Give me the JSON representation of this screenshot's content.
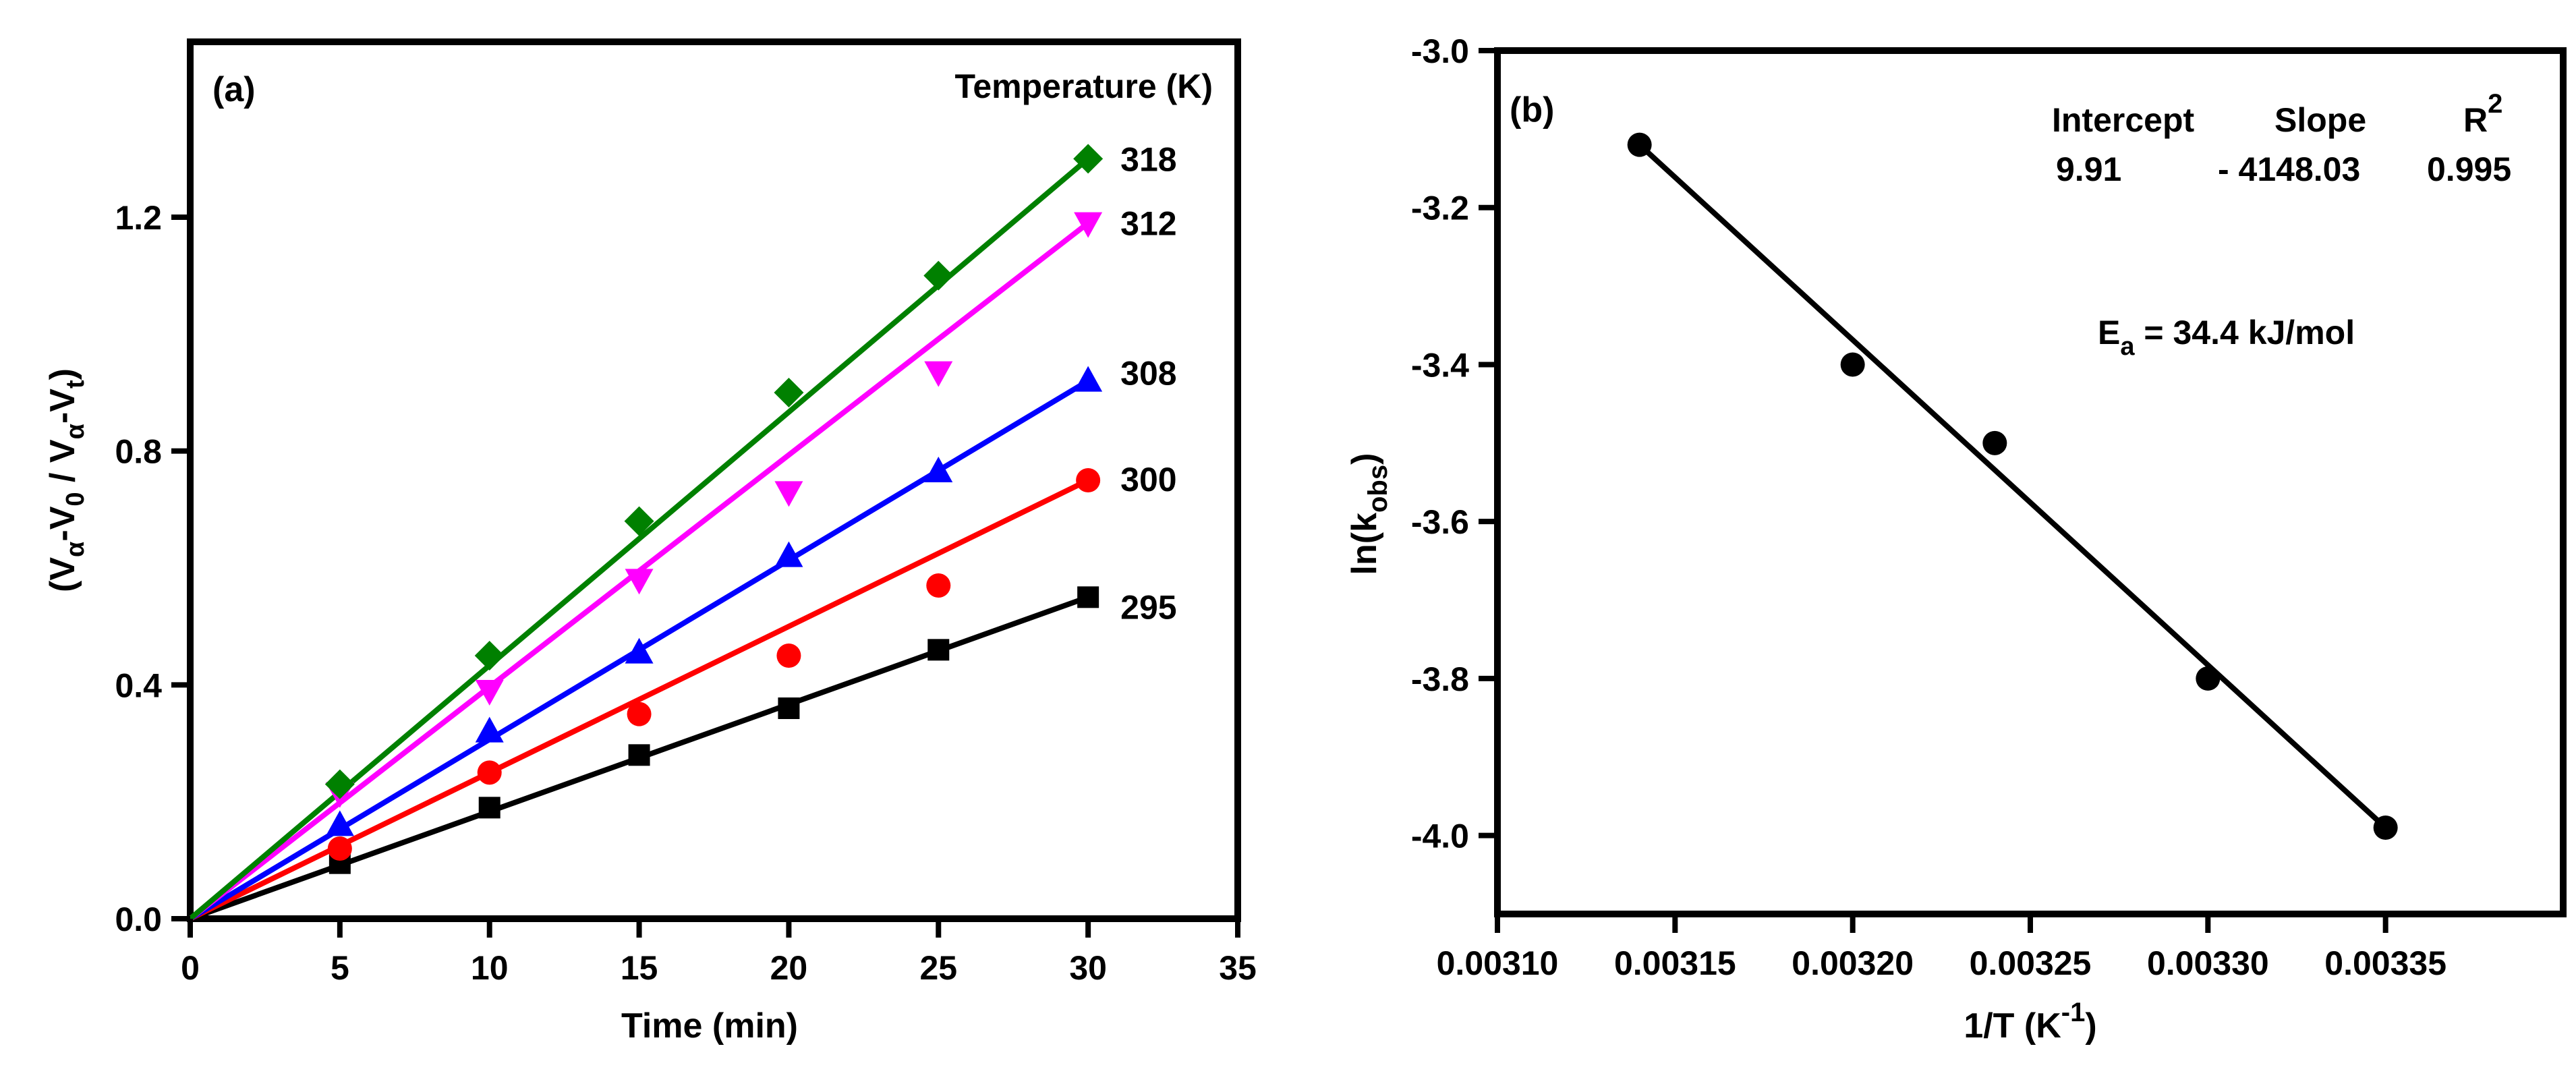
{
  "chart_data": [
    {
      "type": "scatter",
      "panel_label": "(a)",
      "title": "",
      "xlabel": "Time (min)",
      "ylabel": {
        "main": "(V",
        "sub1": "α",
        "mid1": "-V",
        "sub2": "0",
        "mid2": " / V",
        "sub3": "α",
        "mid3": "-V",
        "sub4": "t",
        "end": ")"
      },
      "xlim": [
        0,
        35
      ],
      "ylim": [
        0,
        1.5
      ],
      "xticks": [
        0,
        5,
        10,
        15,
        20,
        25,
        30,
        35
      ],
      "xtick_labels": [
        "0",
        "5",
        "10",
        "15",
        "20",
        "25",
        "30",
        "35"
      ],
      "yticks": [
        0.0,
        0.4,
        0.8,
        1.2
      ],
      "ytick_labels": [
        "0.0",
        "0.4",
        "0.8",
        "1.2"
      ],
      "legend_title": "Temperature (K)",
      "series": [
        {
          "name": "295",
          "marker": "square",
          "color": "#000000",
          "x": [
            5,
            10,
            15,
            20,
            25,
            30
          ],
          "y": [
            0.095,
            0.19,
            0.28,
            0.36,
            0.46,
            0.55
          ],
          "fit": [
            [
              0,
              0.0
            ],
            [
              30,
              0.55
            ]
          ]
        },
        {
          "name": "300",
          "marker": "circle",
          "color": "#ff0000",
          "x": [
            5,
            10,
            15,
            20,
            25,
            30
          ],
          "y": [
            0.12,
            0.25,
            0.35,
            0.45,
            0.57,
            0.75
          ],
          "fit": [
            [
              0,
              0.0
            ],
            [
              30,
              0.75
            ]
          ]
        },
        {
          "name": "308",
          "marker": "triangle-up",
          "color": "#0000ff",
          "x": [
            5,
            10,
            15,
            20,
            25,
            30
          ],
          "y": [
            0.16,
            0.32,
            0.455,
            0.62,
            0.765,
            0.92
          ],
          "fit": [
            [
              0,
              0.0
            ],
            [
              30,
              0.92
            ]
          ]
        },
        {
          "name": "312",
          "marker": "triangle-down",
          "color": "#ff00ff",
          "x": [
            5,
            10,
            15,
            20,
            25,
            30
          ],
          "y": [
            0.215,
            0.39,
            0.58,
            0.73,
            0.935,
            1.19
          ],
          "fit": [
            [
              0,
              0.0
            ],
            [
              30,
              1.19
            ]
          ]
        },
        {
          "name": "318",
          "marker": "diamond",
          "color": "#008000",
          "x": [
            5,
            10,
            15,
            20,
            25,
            30
          ],
          "y": [
            0.23,
            0.45,
            0.68,
            0.9,
            1.1,
            1.3
          ],
          "fit": [
            [
              0,
              0.0
            ],
            [
              30,
              1.3
            ]
          ]
        }
      ]
    },
    {
      "type": "scatter",
      "panel_label": "(b)",
      "title": "",
      "xlabel": {
        "main": "1/T (K",
        "sup": "-1",
        "end": ")"
      },
      "ylabel": {
        "main": "ln(k",
        "sub": "obs",
        "end": ")"
      },
      "xlim": [
        0.0031,
        0.0034
      ],
      "ylim": [
        -4.1,
        -3.0
      ],
      "xticks": [
        0.0031,
        0.00315,
        0.0032,
        0.00325,
        0.0033,
        0.00335
      ],
      "xtick_labels": [
        "0.00310",
        "0.00315",
        "0.00320",
        "0.00325",
        "0.00330",
        "0.00335"
      ],
      "yticks": [
        -3.0,
        -3.2,
        -3.4,
        -3.6,
        -3.8,
        -4.0
      ],
      "ytick_labels": [
        "-3.0",
        "-3.2",
        "-3.4",
        "-3.6",
        "-3.8",
        "-4.0"
      ],
      "series": [
        {
          "name": "ln(kobs)",
          "marker": "circle",
          "color": "#000000",
          "x": [
            0.00314,
            0.0032,
            0.00324,
            0.0033,
            0.00335
          ],
          "y": [
            -3.12,
            -3.4,
            -3.5,
            -3.8,
            -3.99
          ],
          "fit": [
            [
              0.00314,
              -3.12
            ],
            [
              0.00335,
              -3.99
            ]
          ]
        }
      ],
      "stats": {
        "headers": {
          "intercept": "Intercept",
          "slope": "Slope",
          "r2_main": "R",
          "r2_sup": "2"
        },
        "values": {
          "intercept": "9.91",
          "slope": "- 4148.03",
          "r2": "0.995"
        }
      },
      "annotation": {
        "main": "E",
        "sub": "a",
        "rest": " = 34.4 kJ/mol"
      }
    }
  ]
}
